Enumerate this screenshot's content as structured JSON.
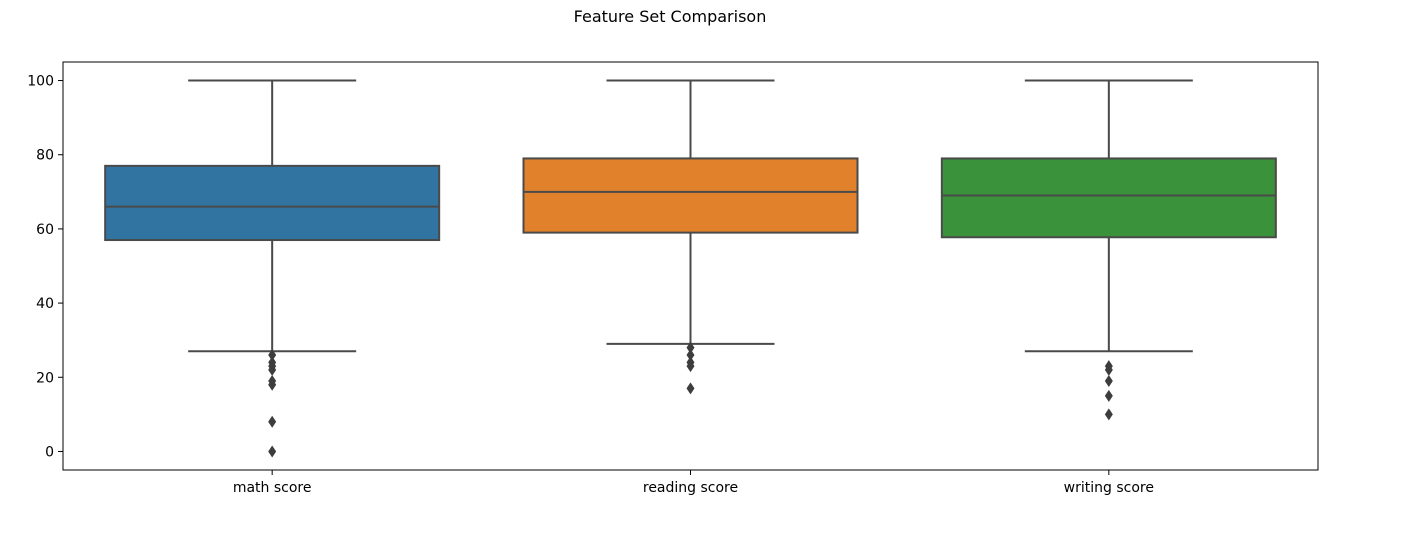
{
  "chart_data": {
    "type": "box",
    "title": "Feature Set Comparison",
    "xlabel": "",
    "ylabel": "",
    "ylim": [
      -5,
      105
    ],
    "yticks": [
      0,
      20,
      40,
      60,
      80,
      100
    ],
    "grid": false,
    "categories": [
      "math score",
      "reading score",
      "writing score"
    ],
    "series": [
      {
        "name": "math score",
        "color": "#3274a1",
        "whisker_low": 27,
        "q1": 57,
        "median": 66,
        "q3": 77,
        "whisker_high": 100,
        "outliers": [
          26,
          24,
          23,
          22,
          19,
          18,
          8,
          0
        ]
      },
      {
        "name": "reading score",
        "color": "#e1812c",
        "whisker_low": 29,
        "q1": 59,
        "median": 70,
        "q3": 79,
        "whisker_high": 100,
        "outliers": [
          28,
          26,
          24,
          23,
          17
        ]
      },
      {
        "name": "writing score",
        "color": "#3a923a",
        "whisker_low": 27,
        "q1": 57.75,
        "median": 69,
        "q3": 79,
        "whisker_high": 100,
        "outliers": [
          23,
          22,
          19,
          15,
          10
        ]
      }
    ]
  }
}
